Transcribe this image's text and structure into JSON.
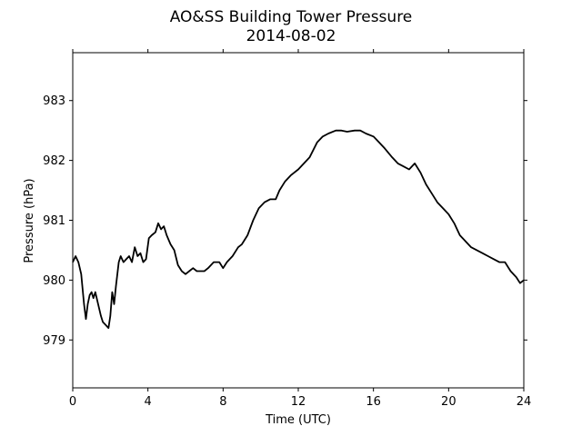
{
  "chart_data": {
    "type": "line",
    "title": "AO&SS Building Tower Pressure",
    "subtitle": "2014-08-02",
    "xlabel": "Time (UTC)",
    "ylabel": "Pressure (hPa)",
    "xlim": [
      0,
      24
    ],
    "ylim": [
      978.2,
      983.8
    ],
    "xticks": [
      0,
      4,
      8,
      12,
      16,
      20,
      24
    ],
    "yticks": [
      979,
      980,
      981,
      982,
      983
    ],
    "grid": false,
    "line_color": "#000000",
    "series": [
      {
        "x": [
          0.0,
          0.15,
          0.3,
          0.45,
          0.6,
          0.7,
          0.8,
          0.9,
          1.0,
          1.1,
          1.2,
          1.35,
          1.5,
          1.6,
          1.75,
          1.9,
          2.0,
          2.1,
          2.2,
          2.3,
          2.45,
          2.55,
          2.7,
          2.85,
          3.0,
          3.15,
          3.3,
          3.45,
          3.6,
          3.75,
          3.9,
          4.05,
          4.2,
          4.4,
          4.55,
          4.7,
          4.85,
          5.0,
          5.2,
          5.4,
          5.6,
          5.8,
          6.0,
          6.2,
          6.4,
          6.6,
          6.8,
          7.0,
          7.2,
          7.5,
          7.8,
          8.0,
          8.2,
          8.5,
          8.8,
          9.0,
          9.3,
          9.6,
          9.9,
          10.2,
          10.5,
          10.8,
          11.0,
          11.3,
          11.6,
          12.0,
          12.3,
          12.6,
          13.0,
          13.3,
          13.6,
          14.0,
          14.3,
          14.6,
          15.0,
          15.3,
          15.6,
          16.0,
          16.3,
          16.6,
          17.0,
          17.3,
          17.6,
          17.9,
          18.2,
          18.5,
          18.8,
          19.1,
          19.4,
          19.7,
          20.0,
          20.3,
          20.6,
          20.9,
          21.2,
          21.5,
          21.8,
          22.1,
          22.4,
          22.7,
          23.0,
          23.3,
          23.6,
          23.8,
          24.0
        ],
        "values": [
          980.3,
          980.4,
          980.3,
          980.1,
          979.6,
          979.35,
          979.6,
          979.75,
          979.8,
          979.7,
          979.8,
          979.6,
          979.4,
          979.3,
          979.25,
          979.2,
          979.4,
          979.8,
          979.6,
          979.9,
          980.3,
          980.4,
          980.3,
          980.35,
          980.4,
          980.3,
          980.55,
          980.4,
          980.45,
          980.3,
          980.35,
          980.7,
          980.75,
          980.8,
          980.95,
          980.85,
          980.9,
          980.75,
          980.6,
          980.5,
          980.25,
          980.15,
          980.1,
          980.15,
          980.2,
          980.15,
          980.15,
          980.15,
          980.2,
          980.3,
          980.3,
          980.2,
          980.3,
          980.4,
          980.55,
          980.6,
          980.75,
          981.0,
          981.2,
          981.3,
          981.35,
          981.35,
          981.5,
          981.65,
          981.75,
          981.85,
          981.95,
          982.05,
          982.3,
          982.4,
          982.45,
          982.5,
          982.5,
          982.48,
          982.5,
          982.5,
          982.45,
          982.4,
          982.3,
          982.2,
          982.05,
          981.95,
          981.9,
          981.85,
          981.95,
          981.8,
          981.6,
          981.45,
          981.3,
          981.2,
          981.1,
          980.95,
          980.75,
          980.65,
          980.55,
          980.5,
          980.45,
          980.4,
          980.35,
          980.3,
          980.3,
          980.15,
          980.05,
          979.95,
          980.0
        ]
      }
    ]
  }
}
